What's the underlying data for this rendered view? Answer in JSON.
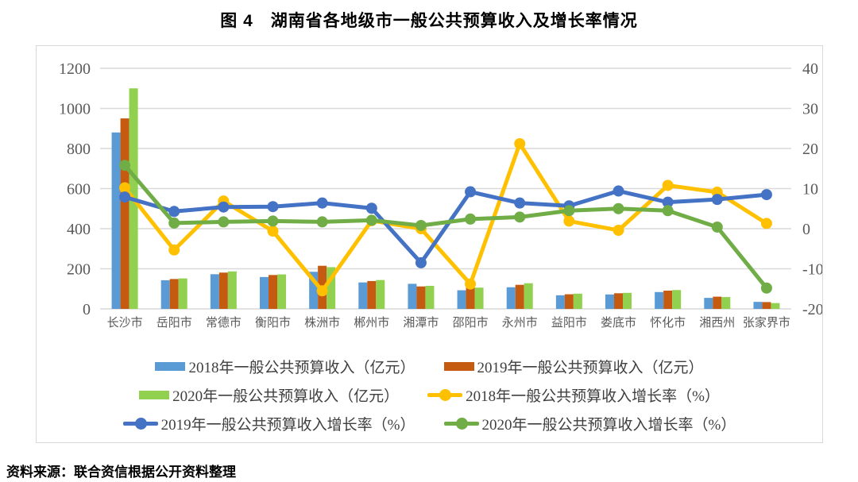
{
  "title": "图 4　湖南省各地级市一般公共预算收入及增长率情况",
  "source_note": "资料来源：联合资信根据公开资料整理",
  "colors": {
    "grid": "#d9d9d9",
    "tick_text": "#595959",
    "bar_2018": "#5b9bd5",
    "bar_2019": "#c55a11",
    "bar_2020": "#92d050",
    "line_2018": "#ffc000",
    "line_2019": "#4472c4",
    "line_2020": "#70ad47"
  },
  "chart_data": {
    "type": "bar",
    "subtype": "combo-bar-line-dual-axis",
    "title": "图 4　湖南省各地级市一般公共预算收入及增长率情况",
    "categories": [
      "长沙市",
      "岳阳市",
      "常德市",
      "衡阳市",
      "株洲市",
      "郴州市",
      "湘潭市",
      "邵阳市",
      "永州市",
      "益阳市",
      "娄底市",
      "怀化市",
      "湘西州",
      "张家界市"
    ],
    "bar_series": [
      {
        "name": "2018年一般公共预算收入（亿元）",
        "color": "#5b9bd5",
        "axis": "left",
        "values": [
          880,
          143,
          173,
          159,
          185,
          132,
          125,
          93,
          108,
          68,
          72,
          84,
          55,
          35
        ]
      },
      {
        "name": "2019年一般公共预算收入（亿元）",
        "color": "#c55a11",
        "axis": "left",
        "values": [
          950,
          149,
          181,
          169,
          215,
          139,
          112,
          108,
          120,
          73,
          78,
          91,
          61,
          34
        ]
      },
      {
        "name": "2020年一般公共预算收入（亿元）",
        "color": "#92d050",
        "axis": "left",
        "values": [
          1100,
          152,
          187,
          172,
          208,
          144,
          115,
          106,
          128,
          76,
          80,
          94,
          59,
          29
        ]
      }
    ],
    "line_series": [
      {
        "name": "2018年一般公共预算收入增长率（%）",
        "color": "#ffc000",
        "axis": "right",
        "values": [
          10.2,
          -5.3,
          6.9,
          -0.6,
          -15.5,
          2.0,
          0.0,
          -13.8,
          21.2,
          1.9,
          -0.4,
          10.8,
          9.1,
          1.3
        ]
      },
      {
        "name": "2019年一般公共预算收入增长率（%）",
        "color": "#4472c4",
        "axis": "right",
        "values": [
          7.9,
          4.3,
          5.4,
          5.5,
          6.4,
          5.1,
          -8.5,
          9.2,
          6.4,
          5.7,
          9.4,
          6.6,
          7.3,
          8.5
        ]
      },
      {
        "name": "2020年一般公共预算收入增长率（%）",
        "color": "#70ad47",
        "axis": "right",
        "values": [
          15.8,
          1.4,
          1.7,
          1.9,
          1.7,
          2.1,
          0.8,
          2.4,
          2.9,
          4.5,
          5.0,
          4.5,
          0.4,
          -14.8
        ]
      }
    ],
    "left_axis": {
      "min": 0,
      "max": 1200,
      "step": 200,
      "ticks": [
        "0",
        "200",
        "400",
        "600",
        "800",
        "1000",
        "1200"
      ]
    },
    "right_axis": {
      "min": -20,
      "max": 40,
      "step": 10,
      "ticks": [
        "-20",
        "-10",
        "0",
        "10",
        "20",
        "30",
        "40"
      ]
    },
    "grid": true,
    "legend_position": "bottom",
    "legend": [
      {
        "label": "2018年一般公共预算收入（亿元）",
        "marker": "rect",
        "color": "#5b9bd5"
      },
      {
        "label": "2019年一般公共预算收入（亿元）",
        "marker": "rect",
        "color": "#c55a11"
      },
      {
        "label": "2020年一般公共预算收入（亿元）",
        "marker": "rect",
        "color": "#92d050"
      },
      {
        "label": "2018年一般公共预算收入增长率（%）",
        "marker": "line-dot",
        "color": "#ffc000"
      },
      {
        "label": "2019年一般公共预算收入增长率（%）",
        "marker": "line-dot",
        "color": "#4472c4"
      },
      {
        "label": "2020年一般公共预算收入增长率（%）",
        "marker": "line-dot",
        "color": "#70ad47"
      }
    ]
  }
}
